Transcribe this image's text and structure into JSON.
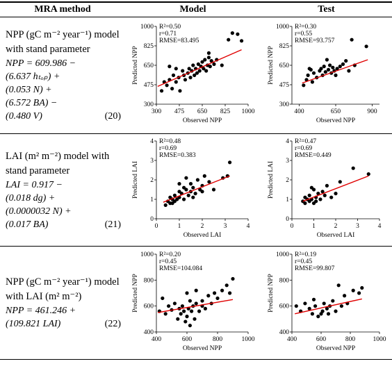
{
  "table": {
    "header": [
      "MRA method",
      "Model",
      "Test"
    ],
    "rows": [
      {
        "method": [
          "NPP (gC m⁻² year⁻¹) model",
          "with stand parameter"
        ],
        "equation": [
          "NPP = 609.986 −",
          "(6.637 hₜₒₚ) +",
          "(0.053 N) +",
          "(6.572 BA) −",
          "(0.480 V)"
        ],
        "equation_number": "(20)",
        "model": {
          "type": "scatter",
          "xlabel": "Observed NPP",
          "ylabel": "Predicted NPP",
          "annotations": [
            "R²=0.50",
            "r=0.71",
            "RMSE=83.495"
          ],
          "xlim": [
            300,
            1000
          ],
          "ylim": [
            300,
            1000
          ],
          "xticks": [
            300,
            475,
            650,
            825,
            1000
          ],
          "yticks": [
            300,
            475,
            650,
            825,
            1000
          ],
          "color": "#000000",
          "x": [
            340,
            360,
            380,
            400,
            420,
            430,
            450,
            470,
            480,
            500,
            510,
            520,
            540,
            550,
            560,
            570,
            580,
            590,
            600,
            610,
            620,
            630,
            640,
            650,
            660,
            670,
            680,
            690,
            700,
            710,
            720,
            740,
            760,
            800,
            850,
            880,
            920,
            950,
            400,
            450,
            700
          ],
          "y": [
            420,
            500,
            470,
            520,
            440,
            560,
            500,
            540,
            420,
            600,
            560,
            520,
            580,
            620,
            540,
            600,
            650,
            560,
            620,
            580,
            660,
            600,
            640,
            680,
            620,
            700,
            600,
            650,
            720,
            640,
            690,
            660,
            700,
            650,
            880,
            940,
            930,
            870,
            640,
            620,
            760
          ],
          "trend": {
            "color": "#e00000",
            "x": [
              310,
              950
            ],
            "y": [
              460,
              790
            ]
          }
        },
        "test": {
          "type": "scatter",
          "xlabel": "Observed NPP",
          "ylabel": "Predicted NPP",
          "annotations": [
            "R²=0.30",
            "r=0.55",
            "RMSE=93.757"
          ],
          "xlim": [
            350,
            950
          ],
          "ylim": [
            300,
            1000
          ],
          "xticks": [
            400,
            650,
            900
          ],
          "yticks": [
            300,
            475,
            650,
            825,
            1000
          ],
          "color": "#000000",
          "x": [
            430,
            450,
            460,
            480,
            490,
            500,
            520,
            540,
            550,
            560,
            570,
            580,
            600,
            610,
            620,
            630,
            640,
            650,
            660,
            680,
            700,
            720,
            740,
            760,
            780,
            860,
            470,
            590
          ],
          "y": [
            470,
            520,
            560,
            610,
            500,
            580,
            540,
            600,
            620,
            560,
            640,
            590,
            610,
            650,
            580,
            630,
            600,
            560,
            620,
            640,
            660,
            690,
            600,
            880,
            650,
            820,
            620,
            700
          ],
          "trend": {
            "color": "#e00000",
            "x": [
              420,
              870
            ],
            "y": [
              490,
              700
            ]
          }
        }
      },
      {
        "method": [
          "LAI (m² m⁻²) model with",
          "stand parameter"
        ],
        "equation": [
          "LAI = 0.917 −",
          "(0.018 dg) +",
          "(0.0000032 N) +",
          "(0.017 BA)"
        ],
        "equation_number": "(21)",
        "model": {
          "type": "scatter",
          "xlabel": "Observed LAI",
          "ylabel": "Predicted LAI",
          "annotations": [
            "R²=0.48",
            "r=0.69",
            "RMSE=0.383"
          ],
          "xlim": [
            0,
            4
          ],
          "ylim": [
            0,
            4
          ],
          "xticks": [
            0,
            1,
            2,
            3,
            4
          ],
          "yticks": [
            0,
            1,
            2,
            3,
            4
          ],
          "color": "#000000",
          "x": [
            0.4,
            0.5,
            0.6,
            0.6,
            0.7,
            0.8,
            0.8,
            0.9,
            1.0,
            1.0,
            1.1,
            1.2,
            1.2,
            1.3,
            1.4,
            1.5,
            1.5,
            1.6,
            1.7,
            1.8,
            1.9,
            2.0,
            2.1,
            2.3,
            2.5,
            2.9,
            3.1,
            3.2,
            0.7,
            1.0,
            1.3,
            1.6,
            2.0
          ],
          "y": [
            0.7,
            0.9,
            0.8,
            1.1,
            1.0,
            0.9,
            1.2,
            1.0,
            1.1,
            1.4,
            1.3,
            1.0,
            1.6,
            1.5,
            1.2,
            1.8,
            1.4,
            1.6,
            1.3,
            2.0,
            1.5,
            1.7,
            2.2,
            1.9,
            1.5,
            2.1,
            2.2,
            2.9,
            0.8,
            1.8,
            2.1,
            1.1,
            1.4
          ],
          "trend": {
            "color": "#e00000",
            "x": [
              0.3,
              3.2
            ],
            "y": [
              0.85,
              2.2
            ]
          }
        },
        "test": {
          "type": "scatter",
          "xlabel": "Observed LAI",
          "ylabel": "Predicted LAI",
          "annotations": [
            "R²=0.47",
            "r=0.69",
            "RMSE=0.449"
          ],
          "xlim": [
            0,
            4
          ],
          "ylim": [
            0,
            4
          ],
          "xticks": [
            0,
            1,
            2,
            3,
            4
          ],
          "yticks": [
            0,
            1,
            2,
            3,
            4
          ],
          "color": "#000000",
          "x": [
            0.5,
            0.6,
            0.7,
            0.8,
            0.8,
            0.9,
            1.0,
            1.0,
            1.1,
            1.2,
            1.3,
            1.4,
            1.5,
            1.6,
            1.8,
            2.0,
            2.2,
            2.8,
            3.5,
            0.9,
            1.1,
            0.6
          ],
          "y": [
            0.9,
            0.8,
            1.0,
            0.9,
            1.2,
            1.0,
            1.5,
            0.8,
            1.1,
            1.3,
            1.0,
            1.4,
            1.2,
            1.7,
            1.1,
            1.3,
            1.9,
            2.6,
            2.3,
            1.6,
            0.9,
            1.1
          ],
          "trend": {
            "color": "#e00000",
            "x": [
              0.5,
              3.5
            ],
            "y": [
              0.9,
              2.2
            ]
          }
        }
      },
      {
        "method": [
          "NPP (gC m⁻² year⁻¹) model",
          "with LAI (m² m⁻²)"
        ],
        "equation": [
          "NPP = 461.246 +",
          "(109.821 LAI)"
        ],
        "equation_number": "(22)",
        "model": {
          "type": "scatter",
          "xlabel": "Observed NPP",
          "ylabel": "Predicted NPP",
          "annotations": [
            "R²=0.20",
            "r=0.45",
            "RMSE=104.084"
          ],
          "xlim": [
            400,
            1000
          ],
          "ylim": [
            400,
            1000
          ],
          "xticks": [
            400,
            600,
            800,
            1000
          ],
          "yticks": [
            400,
            600,
            800,
            1000
          ],
          "color": "#000000",
          "x": [
            420,
            440,
            460,
            480,
            500,
            520,
            540,
            550,
            560,
            570,
            580,
            590,
            600,
            610,
            620,
            630,
            640,
            650,
            660,
            680,
            700,
            720,
            740,
            760,
            780,
            800,
            830,
            860,
            880,
            900,
            600,
            620,
            660,
            700
          ],
          "y": [
            560,
            660,
            540,
            600,
            570,
            620,
            500,
            580,
            540,
            600,
            560,
            480,
            520,
            580,
            640,
            560,
            600,
            500,
            620,
            560,
            640,
            580,
            680,
            620,
            700,
            660,
            720,
            760,
            700,
            810,
            700,
            450,
            720,
            600
          ],
          "trend": {
            "color": "#e00000",
            "x": [
              410,
              900
            ],
            "y": [
              550,
              650
            ]
          }
        },
        "test": {
          "type": "scatter",
          "xlabel": "Observed NPP",
          "ylabel": "Predicted NPP",
          "annotations": [
            "R²=0.19",
            "r=0.45",
            "RMSE=99.807"
          ],
          "xlim": [
            400,
            1000
          ],
          "ylim": [
            400,
            1000
          ],
          "xticks": [
            400,
            600,
            800,
            1000
          ],
          "yticks": [
            400,
            600,
            800,
            1000
          ],
          "color": "#000000",
          "x": [
            430,
            460,
            490,
            520,
            540,
            560,
            580,
            600,
            610,
            620,
            640,
            660,
            680,
            700,
            720,
            740,
            760,
            780,
            820,
            860,
            880,
            550,
            650
          ],
          "y": [
            600,
            560,
            620,
            580,
            540,
            600,
            520,
            540,
            560,
            620,
            580,
            600,
            640,
            560,
            760,
            600,
            680,
            620,
            720,
            700,
            740,
            650,
            540
          ],
          "trend": {
            "color": "#e00000",
            "x": [
              420,
              880
            ],
            "y": [
              540,
              655
            ]
          }
        }
      }
    ]
  }
}
